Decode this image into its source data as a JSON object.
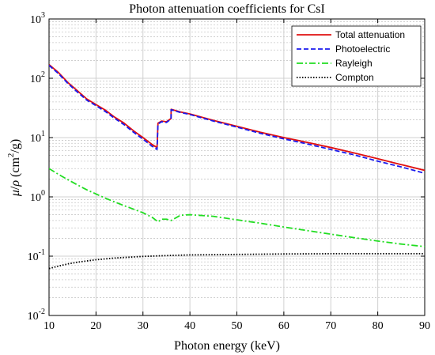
{
  "chart_data": {
    "type": "line",
    "title": "Photon attenuation coefficients for CsI",
    "xlabel": "Photon energy (keV)",
    "ylabel_parts": {
      "mu": "μ",
      "slash": "/",
      "rho": "ρ",
      "unit_open": "(cm",
      "unit_exp": "2",
      "unit_close": "/g)"
    },
    "xlim": [
      10,
      90
    ],
    "ylim": [
      0.01,
      1000
    ],
    "yscale": "log",
    "grid": true,
    "x_ticks": [
      "10",
      "20",
      "30",
      "40",
      "50",
      "60",
      "70",
      "80",
      "90"
    ],
    "y_ticks": [
      {
        "base": "10",
        "exp": "-2",
        "value": 0.01
      },
      {
        "base": "10",
        "exp": "-1",
        "value": 0.1
      },
      {
        "base": "10",
        "exp": "0",
        "value": 1
      },
      {
        "base": "10",
        "exp": "1",
        "value": 10
      },
      {
        "base": "10",
        "exp": "2",
        "value": 100
      },
      {
        "base": "10",
        "exp": "3",
        "value": 1000
      }
    ],
    "legend_position": "top-right",
    "series": [
      {
        "name": "Total attenuation",
        "color": "#e01010",
        "style": "solid",
        "points": [
          [
            10,
            170
          ],
          [
            12,
            125
          ],
          [
            14,
            85
          ],
          [
            16,
            62
          ],
          [
            18,
            45
          ],
          [
            20,
            36
          ],
          [
            22,
            29
          ],
          [
            24,
            22
          ],
          [
            26,
            17.5
          ],
          [
            28,
            13
          ],
          [
            30,
            10
          ],
          [
            32,
            7.6
          ],
          [
            33.0,
            6.8
          ],
          [
            33.2,
            17.5
          ],
          [
            34,
            19
          ],
          [
            35,
            18.5
          ],
          [
            35.98,
            21
          ],
          [
            36.0,
            30
          ],
          [
            38,
            27
          ],
          [
            40,
            25
          ],
          [
            45,
            19.5
          ],
          [
            50,
            15.5
          ],
          [
            55,
            12.3
          ],
          [
            60,
            10
          ],
          [
            65,
            8.3
          ],
          [
            70,
            6.8
          ],
          [
            75,
            5.5
          ],
          [
            80,
            4.4
          ],
          [
            85,
            3.5
          ],
          [
            90,
            2.8
          ]
        ]
      },
      {
        "name": "Photoelectric",
        "color": "#1a1aee",
        "style": "dashed",
        "points": [
          [
            10,
            165
          ],
          [
            12,
            120
          ],
          [
            14,
            82
          ],
          [
            16,
            59
          ],
          [
            18,
            43
          ],
          [
            20,
            34.5
          ],
          [
            22,
            27.5
          ],
          [
            24,
            21
          ],
          [
            26,
            16.5
          ],
          [
            28,
            12.3
          ],
          [
            30,
            9.4
          ],
          [
            32,
            7.1
          ],
          [
            33.0,
            6.3
          ],
          [
            33.2,
            17
          ],
          [
            34,
            18.5
          ],
          [
            35,
            18
          ],
          [
            35.98,
            20.5
          ],
          [
            36.0,
            29.5
          ],
          [
            38,
            26.5
          ],
          [
            40,
            24.5
          ],
          [
            45,
            19
          ],
          [
            50,
            15
          ],
          [
            55,
            11.8
          ],
          [
            60,
            9.5
          ],
          [
            65,
            7.8
          ],
          [
            70,
            6.3
          ],
          [
            75,
            5.1
          ],
          [
            80,
            4
          ],
          [
            85,
            3.2
          ],
          [
            90,
            2.5
          ]
        ]
      },
      {
        "name": "Rayleigh",
        "color": "#22dd22",
        "style": "dashdot",
        "points": [
          [
            10,
            3.0
          ],
          [
            12,
            2.4
          ],
          [
            14,
            1.95
          ],
          [
            16,
            1.6
          ],
          [
            18,
            1.32
          ],
          [
            20,
            1.12
          ],
          [
            22,
            0.95
          ],
          [
            24,
            0.82
          ],
          [
            26,
            0.71
          ],
          [
            28,
            0.62
          ],
          [
            30,
            0.54
          ],
          [
            32,
            0.45
          ],
          [
            33.0,
            0.39
          ],
          [
            33.2,
            0.38
          ],
          [
            34,
            0.42
          ],
          [
            35,
            0.42
          ],
          [
            36,
            0.4
          ],
          [
            38,
            0.49
          ],
          [
            40,
            0.5
          ],
          [
            45,
            0.47
          ],
          [
            50,
            0.41
          ],
          [
            55,
            0.36
          ],
          [
            60,
            0.31
          ],
          [
            65,
            0.27
          ],
          [
            70,
            0.235
          ],
          [
            75,
            0.205
          ],
          [
            80,
            0.18
          ],
          [
            85,
            0.16
          ],
          [
            90,
            0.145
          ]
        ]
      },
      {
        "name": "Compton",
        "color": "#000000",
        "style": "dotted",
        "points": [
          [
            10,
            0.062
          ],
          [
            12,
            0.068
          ],
          [
            14,
            0.074
          ],
          [
            16,
            0.079
          ],
          [
            18,
            0.083
          ],
          [
            20,
            0.087
          ],
          [
            22,
            0.09
          ],
          [
            24,
            0.093
          ],
          [
            26,
            0.095
          ],
          [
            28,
            0.097
          ],
          [
            30,
            0.099
          ],
          [
            33,
            0.101
          ],
          [
            36,
            0.103
          ],
          [
            40,
            0.105
          ],
          [
            45,
            0.106
          ],
          [
            50,
            0.107
          ],
          [
            55,
            0.108
          ],
          [
            60,
            0.109
          ],
          [
            70,
            0.11
          ],
          [
            80,
            0.11
          ],
          [
            90,
            0.11
          ]
        ]
      }
    ]
  }
}
